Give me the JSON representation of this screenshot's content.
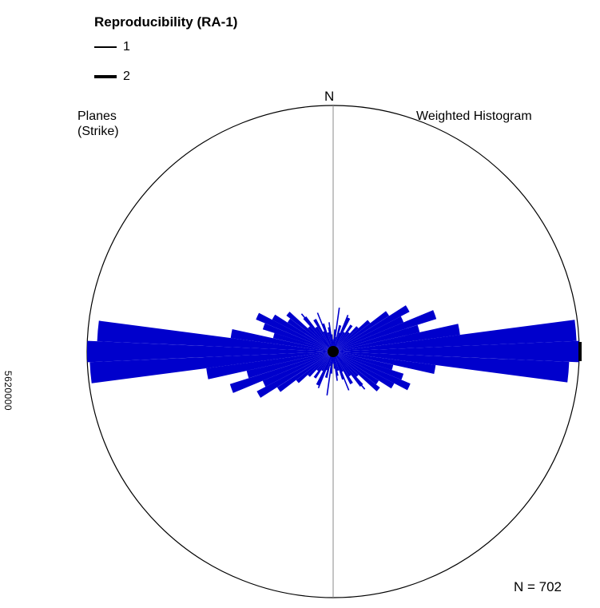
{
  "legend": {
    "title": "Reproducibility (RA-1)",
    "items": [
      {
        "label": "1",
        "weight": "thin"
      },
      {
        "label": "2",
        "weight": "thick"
      }
    ]
  },
  "side_axis_label": "5620000",
  "chart_data": {
    "type": "rose",
    "north_label": "N",
    "label_top_left": [
      "Planes",
      "(Strike)"
    ],
    "label_top_right": "Weighted Histogram",
    "count_label": "N = 702",
    "petal_color": "#0000cc",
    "max_radius_fraction": 1.0,
    "bin_width_deg": 5,
    "petals": [
      {
        "azimuth": 0,
        "length": 0.05
      },
      {
        "azimuth": 5,
        "length": 0.09
      },
      {
        "azimuth": 10,
        "length": 0.06
      },
      {
        "azimuth": 15,
        "length": 0.11
      },
      {
        "azimuth": 20,
        "length": 0.08
      },
      {
        "azimuth": 25,
        "length": 0.15
      },
      {
        "azimuth": 30,
        "length": 0.09
      },
      {
        "azimuth": 35,
        "length": 0.13
      },
      {
        "azimuth": 40,
        "length": 0.1
      },
      {
        "azimuth": 45,
        "length": 0.14
      },
      {
        "azimuth": 50,
        "length": 0.19
      },
      {
        "azimuth": 55,
        "length": 0.27
      },
      {
        "azimuth": 60,
        "length": 0.35
      },
      {
        "azimuth": 65,
        "length": 0.31
      },
      {
        "azimuth": 70,
        "length": 0.44
      },
      {
        "azimuth": 75,
        "length": 0.36
      },
      {
        "azimuth": 80,
        "length": 0.52
      },
      {
        "azimuth": 85,
        "length": 0.99
      },
      {
        "azimuth": 90,
        "length": 1.0
      },
      {
        "azimuth": 95,
        "length": 0.96
      },
      {
        "azimuth": 100,
        "length": 0.42
      },
      {
        "azimuth": 105,
        "length": 0.25
      },
      {
        "azimuth": 110,
        "length": 0.3
      },
      {
        "azimuth": 115,
        "length": 0.34
      },
      {
        "azimuth": 120,
        "length": 0.28
      },
      {
        "azimuth": 125,
        "length": 0.22
      },
      {
        "azimuth": 130,
        "length": 0.24
      },
      {
        "azimuth": 135,
        "length": 0.14
      },
      {
        "azimuth": 140,
        "length": 0.18
      },
      {
        "azimuth": 145,
        "length": 0.12
      },
      {
        "azimuth": 150,
        "length": 0.15
      },
      {
        "azimuth": 155,
        "length": 0.09
      },
      {
        "azimuth": 160,
        "length": 0.12
      },
      {
        "azimuth": 165,
        "length": 0.08
      },
      {
        "azimuth": 170,
        "length": 0.1
      },
      {
        "azimuth": 175,
        "length": 0.07
      }
    ],
    "center_spokes": [
      {
        "azimuth": 8,
        "length": 0.18
      },
      {
        "azimuth": 22,
        "length": 0.16
      },
      {
        "azimuth": 158,
        "length": 0.17
      },
      {
        "azimuth": 172,
        "length": 0.12
      },
      {
        "azimuth": 140,
        "length": 0.2
      }
    ]
  }
}
